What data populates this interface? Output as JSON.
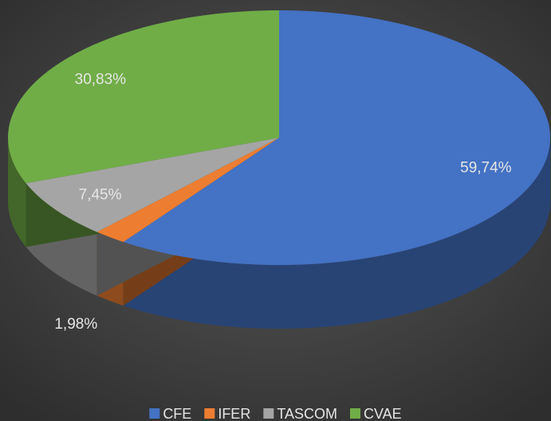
{
  "chart_data": {
    "type": "pie3d",
    "categories": [
      "CFE",
      "IFER",
      "TASCOM",
      "CVAE"
    ],
    "values": [
      59.74,
      1.98,
      7.45,
      30.83
    ],
    "value_labels": [
      "59,74%",
      "1,98%",
      "7,45%",
      "30,83%"
    ],
    "colors": [
      "#4472c4",
      "#ed7d31",
      "#a5a5a5",
      "#70ad47"
    ],
    "legend": "bottom"
  }
}
